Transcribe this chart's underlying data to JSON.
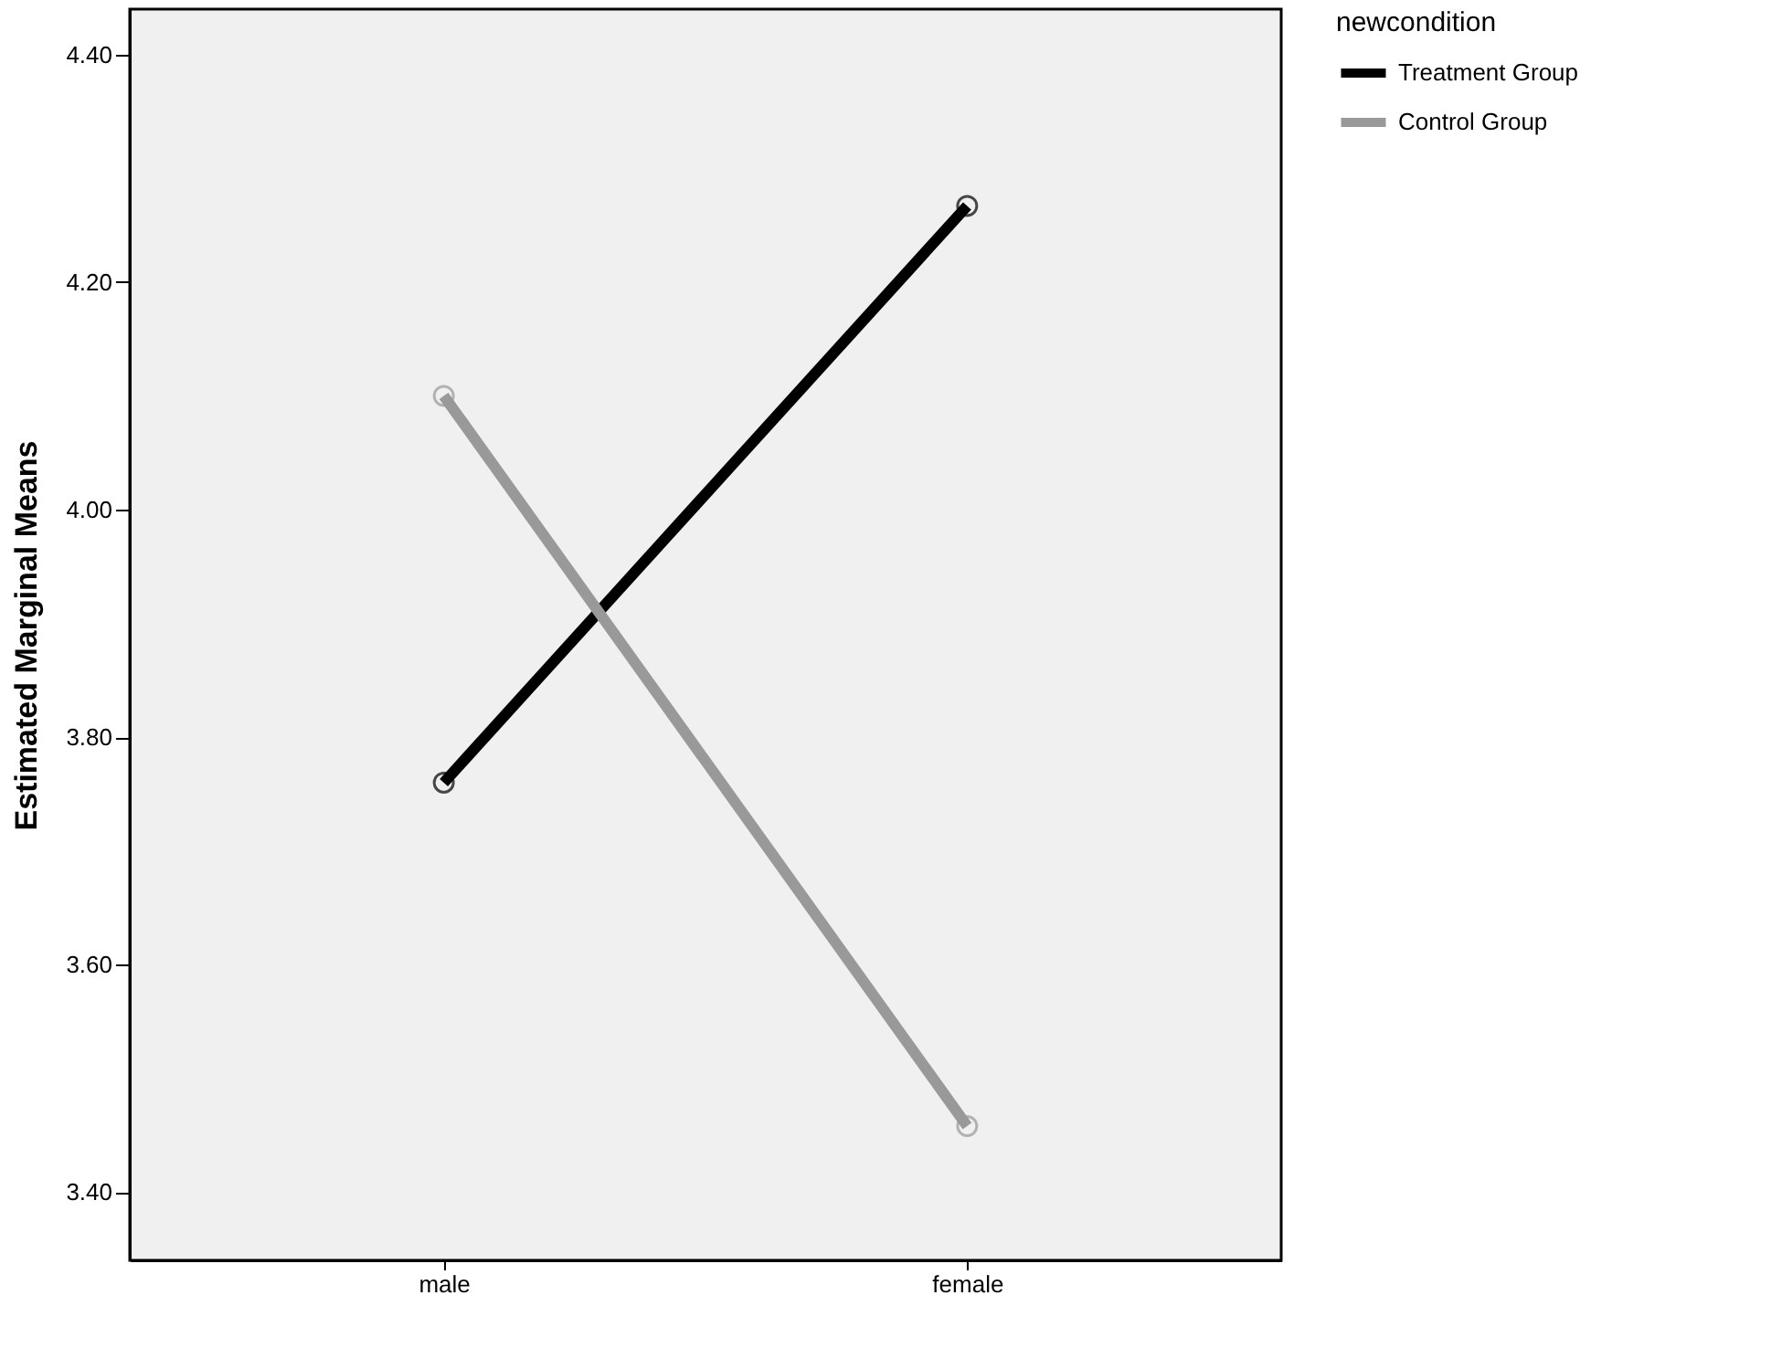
{
  "chart_data": {
    "type": "line",
    "ylabel": "Estimated Marginal Means",
    "legend_title": "newcondition",
    "categories": [
      "male",
      "female"
    ],
    "series": [
      {
        "name": "Treatment Group",
        "color": "#000000",
        "values": [
          3.76,
          4.267
        ]
      },
      {
        "name": "Control Group",
        "color": "#999999",
        "values": [
          4.1,
          3.458
        ]
      }
    ],
    "ylim": [
      3.34,
      4.44
    ],
    "yticks": [
      {
        "value": 3.4,
        "label": "3.40"
      },
      {
        "value": 3.6,
        "label": "3.60"
      },
      {
        "value": 3.8,
        "label": "3.80"
      },
      {
        "value": 4.0,
        "label": "4.00"
      },
      {
        "value": 4.2,
        "label": "4.20"
      },
      {
        "value": 4.4,
        "label": "4.40"
      }
    ],
    "grid": false,
    "legend": "top right",
    "marker": "circle",
    "line_style": "solid"
  }
}
